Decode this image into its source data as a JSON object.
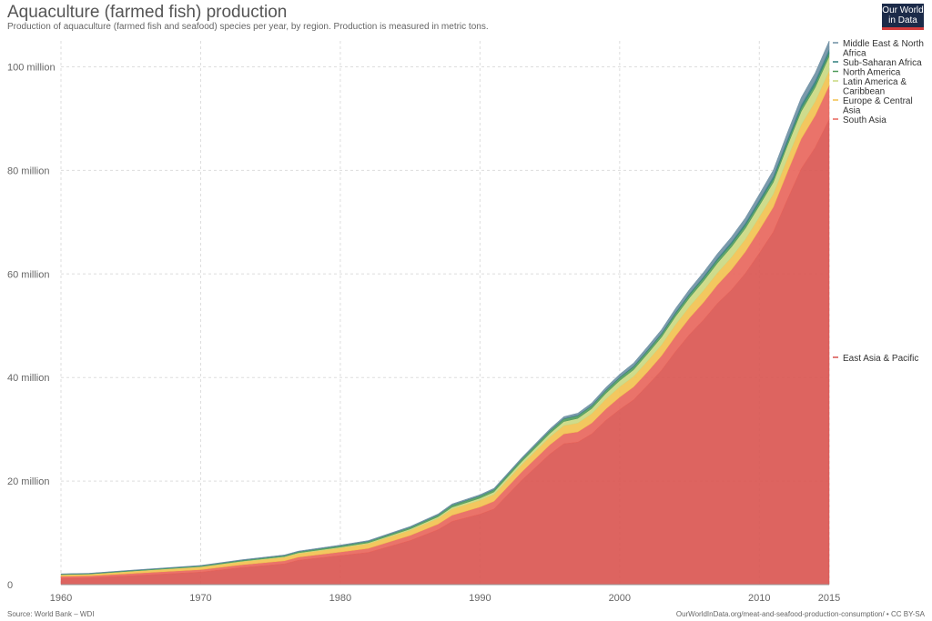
{
  "header": {
    "title": "Aquaculture (farmed fish) production",
    "subtitle": "Production of aquaculture (farmed fish and seafood) species per year, by region. Production is measured in metric tons."
  },
  "logo": {
    "line1": "Our World",
    "line2": "in Data"
  },
  "footer": {
    "source": "Source: World Bank – WDI",
    "license": "OurWorldInData.org/meat-and-seafood-production-consumption/ • CC BY-SA"
  },
  "chart_data": {
    "type": "area",
    "stacked": true,
    "title": "Aquaculture (farmed fish) production",
    "xlabel": "",
    "ylabel": "",
    "xlim": [
      1960,
      2015
    ],
    "ylim": [
      0,
      105000000
    ],
    "grid": true,
    "legend_placement": "right",
    "x_ticks": [
      {
        "value": 1960,
        "label": "1960"
      },
      {
        "value": 1970,
        "label": "1970"
      },
      {
        "value": 1980,
        "label": "1980"
      },
      {
        "value": 1990,
        "label": "1990"
      },
      {
        "value": 2000,
        "label": "2000"
      },
      {
        "value": 2010,
        "label": "2010"
      },
      {
        "value": 2015,
        "label": "2015"
      }
    ],
    "y_ticks": [
      {
        "value": 0,
        "label": "0"
      },
      {
        "value": 20000000,
        "label": "20 million"
      },
      {
        "value": 40000000,
        "label": "40 million"
      },
      {
        "value": 60000000,
        "label": "60 million"
      },
      {
        "value": 80000000,
        "label": "80 million"
      },
      {
        "value": 100000000,
        "label": "100 million"
      }
    ],
    "x": [
      1960,
      1962,
      1965,
      1970,
      1973,
      1976,
      1977,
      1980,
      1982,
      1985,
      1987,
      1988,
      1990,
      1991,
      1993,
      1995,
      1996,
      1997,
      1998,
      1999,
      2000,
      2001,
      2002,
      2003,
      2004,
      2005,
      2006,
      2007,
      2008,
      2009,
      2010,
      2011,
      2012,
      2013,
      2014,
      2015
    ],
    "series": [
      {
        "name": "East Asia & Pacific",
        "color": "#d9534f",
        "values": [
          1200000,
          1300000,
          1700000,
          2400000,
          3300000,
          4000000,
          4700000,
          5600000,
          6200000,
          8500000,
          10600000,
          12200000,
          13600000,
          14600000,
          20200000,
          25200000,
          27200000,
          27500000,
          29100000,
          31700000,
          33800000,
          35700000,
          38500000,
          41400000,
          45000000,
          48300000,
          51100000,
          54300000,
          56900000,
          60100000,
          64000000,
          68100000,
          74300000,
          80300000,
          84400000,
          89800000
        ]
      },
      {
        "name": "South Asia",
        "color": "#e8645a",
        "values": [
          400000,
          400000,
          450000,
          500000,
          550000,
          600000,
          620000,
          700000,
          800000,
          1000000,
          1100000,
          1200000,
          1400000,
          1500000,
          1600000,
          1800000,
          1900000,
          2000000,
          2100000,
          2200000,
          2400000,
          2500000,
          2600000,
          2800000,
          3000000,
          3200000,
          3400000,
          3600000,
          3900000,
          4200000,
          4500000,
          4800000,
          5300000,
          5800000,
          6200000,
          6600000
        ]
      },
      {
        "name": "Europe & Central Asia",
        "color": "#f2c14e",
        "values": [
          300000,
          300000,
          400000,
          500000,
          600000,
          700000,
          700000,
          800000,
          900000,
          1000000,
          1100000,
          1200000,
          1300000,
          1300000,
          1400000,
          1500000,
          1600000,
          1700000,
          1800000,
          1900000,
          2000000,
          2000000,
          2100000,
          2100000,
          2200000,
          2200000,
          2300000,
          2300000,
          2400000,
          2400000,
          2500000,
          2500000,
          2600000,
          2700000,
          2700000,
          2800000
        ]
      },
      {
        "name": "Latin America & Caribbean",
        "color": "#c9d87f",
        "values": [
          30000,
          40000,
          50000,
          80000,
          100000,
          120000,
          130000,
          150000,
          180000,
          250000,
          300000,
          350000,
          400000,
          500000,
          600000,
          700000,
          800000,
          900000,
          1000000,
          1100000,
          1200000,
          1300000,
          1400000,
          1500000,
          1600000,
          1700000,
          1800000,
          1900000,
          2000000,
          2100000,
          2200000,
          2300000,
          2500000,
          2600000,
          2700000,
          2800000
        ]
      },
      {
        "name": "North America",
        "color": "#4e9a5a",
        "values": [
          100000,
          100000,
          120000,
          150000,
          180000,
          200000,
          210000,
          250000,
          270000,
          300000,
          350000,
          400000,
          420000,
          430000,
          450000,
          500000,
          510000,
          520000,
          530000,
          540000,
          550000,
          560000,
          570000,
          580000,
          590000,
          600000,
          600000,
          610000,
          620000,
          630000,
          640000,
          650000,
          660000,
          670000,
          680000,
          690000
        ]
      },
      {
        "name": "Sub-Saharan Africa",
        "color": "#2f7f7e",
        "values": [
          10000,
          10000,
          10000,
          15000,
          20000,
          20000,
          20000,
          25000,
          30000,
          35000,
          40000,
          45000,
          50000,
          55000,
          60000,
          70000,
          80000,
          90000,
          100000,
          110000,
          120000,
          140000,
          160000,
          180000,
          200000,
          230000,
          260000,
          300000,
          350000,
          400000,
          450000,
          500000,
          550000,
          600000,
          650000,
          700000
        ]
      },
      {
        "name": "Middle East & North Africa",
        "color": "#6d8fa3",
        "values": [
          50000,
          50000,
          60000,
          70000,
          80000,
          100000,
          100000,
          120000,
          130000,
          150000,
          170000,
          190000,
          200000,
          220000,
          250000,
          300000,
          350000,
          400000,
          450000,
          500000,
          550000,
          600000,
          650000,
          700000,
          750000,
          800000,
          850000,
          900000,
          950000,
          1000000,
          1100000,
          1200000,
          1300000,
          1400000,
          1500000,
          1600000
        ]
      }
    ],
    "legend": [
      {
        "label": "Middle East & North Africa",
        "color": "#6d8fa3"
      },
      {
        "label": "Sub-Saharan Africa",
        "color": "#2f7f7e"
      },
      {
        "label": "North America",
        "color": "#4e9a5a"
      },
      {
        "label": "Latin America & Caribbean",
        "color": "#c9d87f"
      },
      {
        "label": "Europe & Central Asia",
        "color": "#f2c14e"
      },
      {
        "label": "South Asia",
        "color": "#e8645a"
      },
      {
        "label": "East Asia & Pacific",
        "color": "#d9534f"
      }
    ],
    "legend_lines": {
      "Middle East & North Africa": [
        "Middle East & North",
        "Africa"
      ],
      "Sub-Saharan Africa": [
        "Sub-Saharan Africa"
      ],
      "North America": [
        "North America"
      ],
      "Latin America & Caribbean": [
        "Latin America &",
        "Caribbean"
      ],
      "Europe & Central Asia": [
        "Europe & Central",
        "Asia"
      ],
      "South Asia": [
        "South Asia"
      ],
      "East Asia & Pacific": [
        "East Asia & Pacific"
      ]
    }
  }
}
